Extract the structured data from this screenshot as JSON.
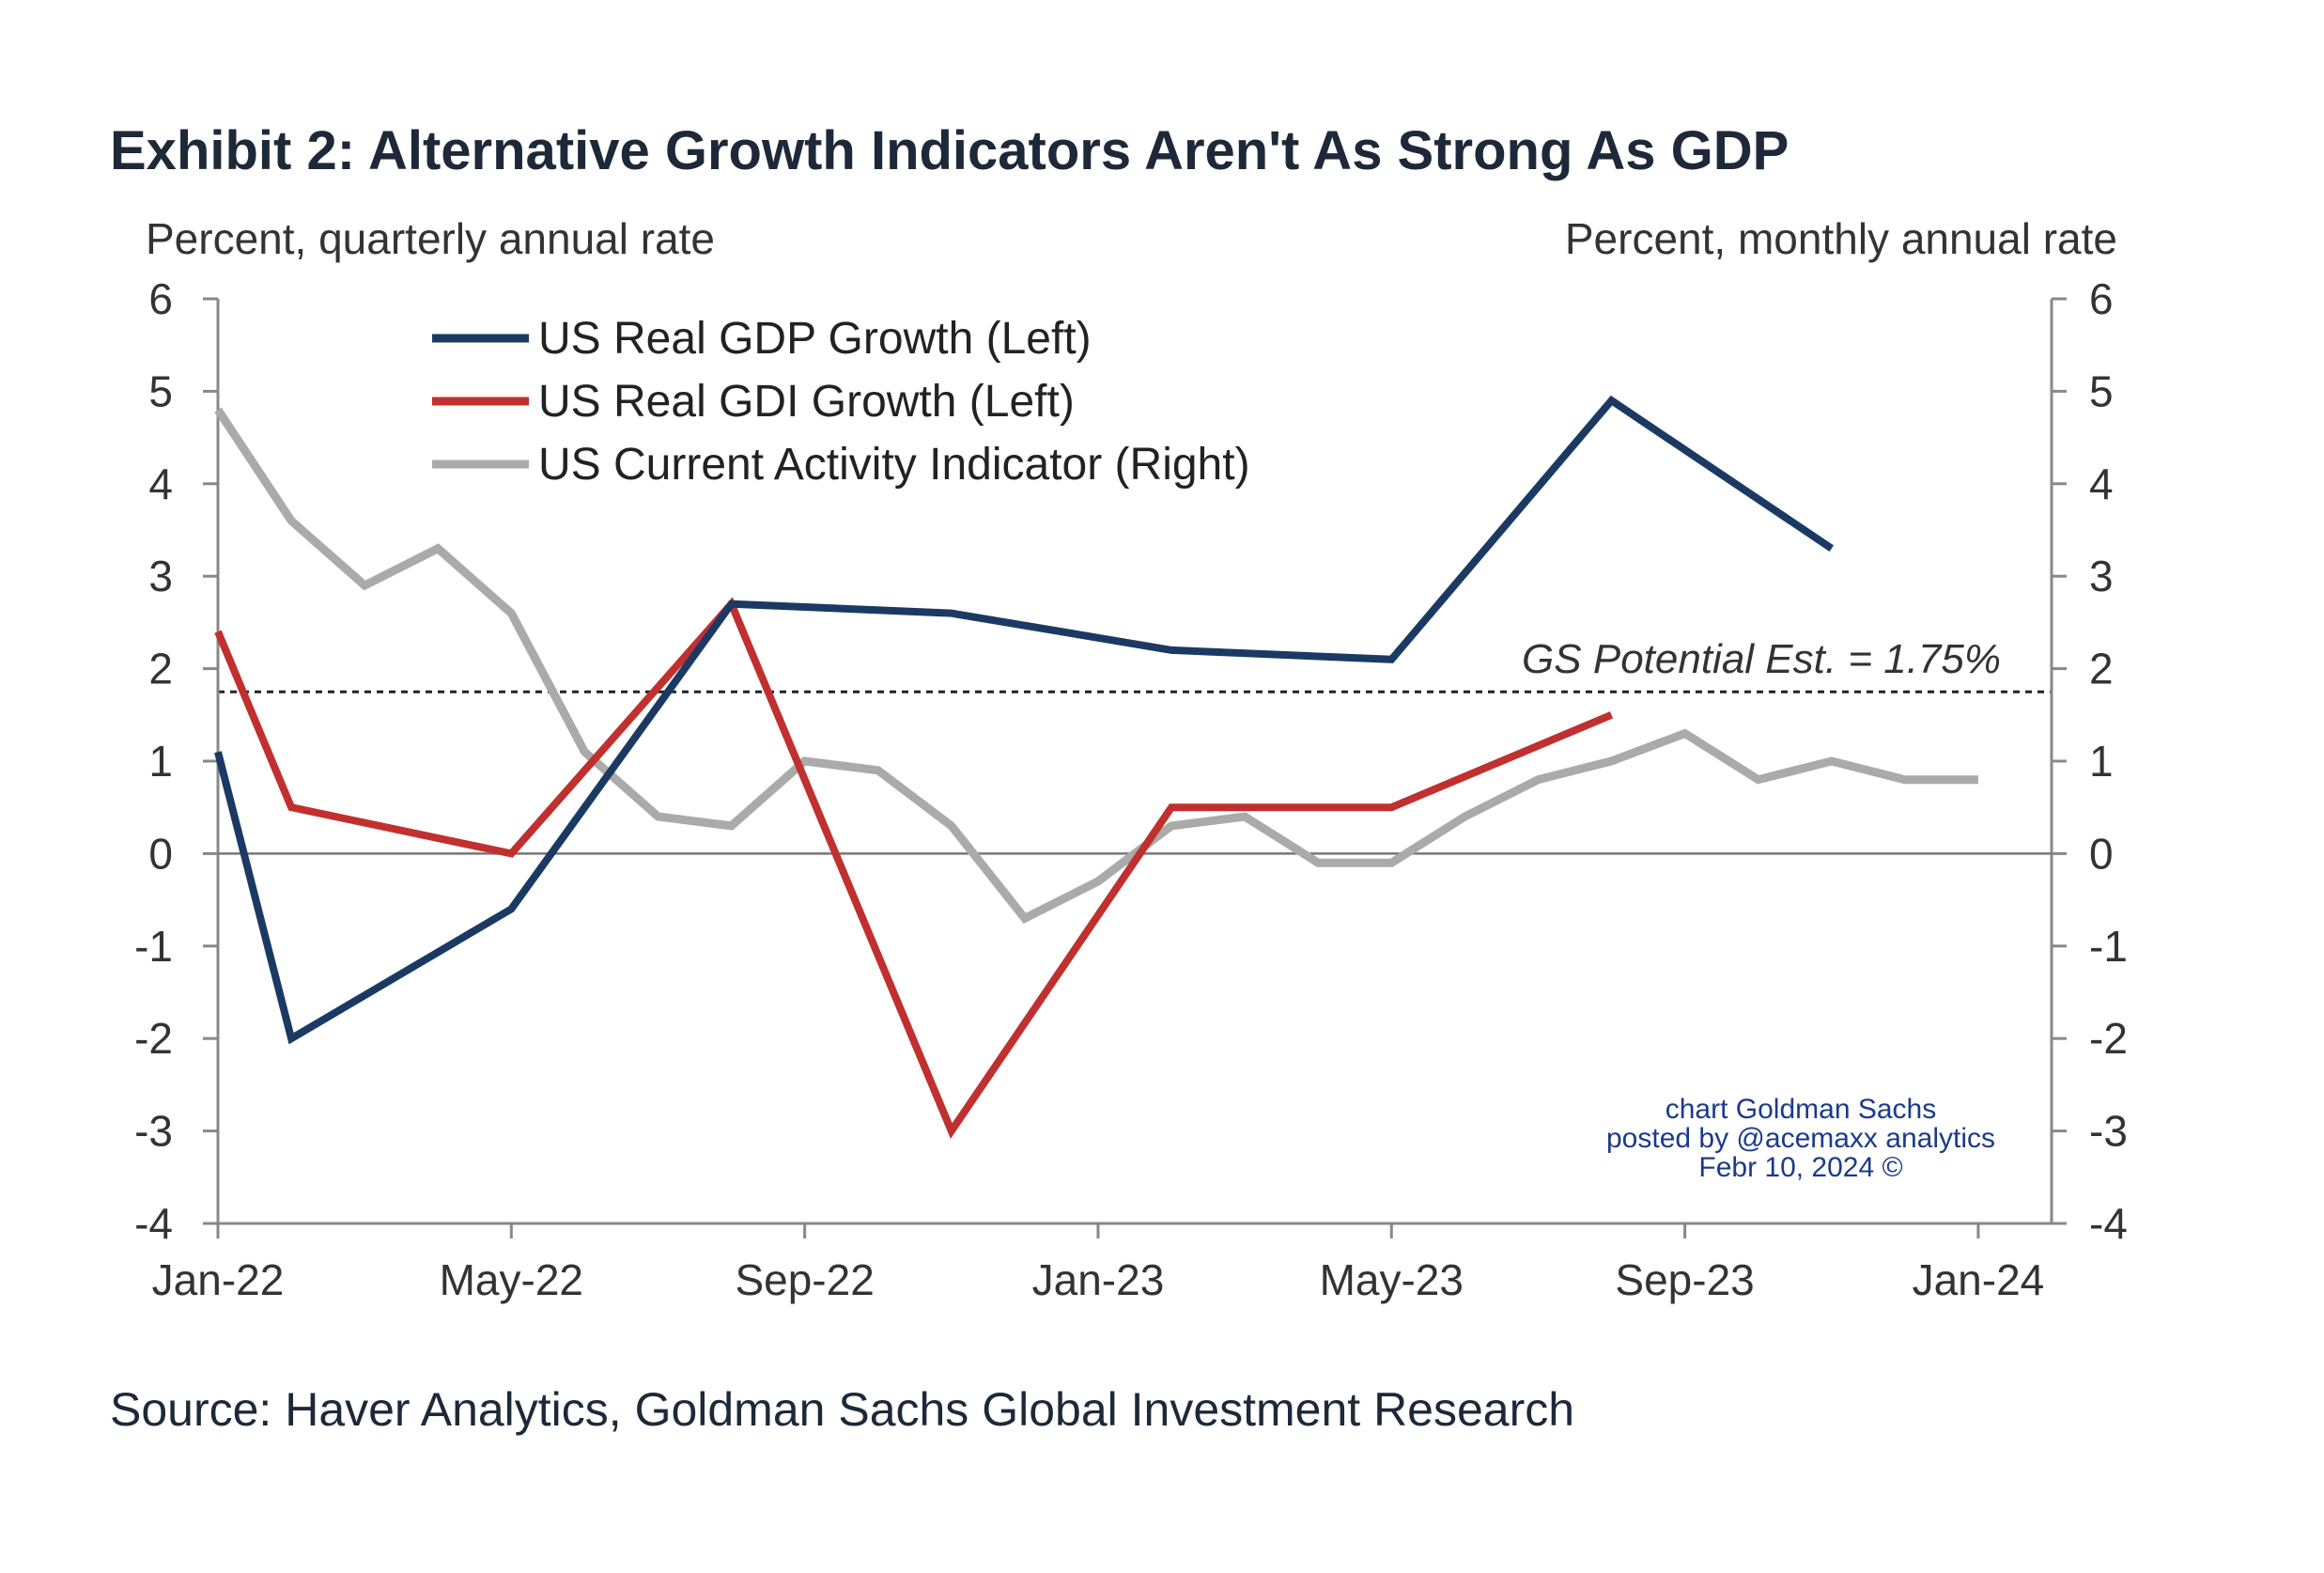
{
  "page": {
    "title": "Exhibit 2: Alternative Growth Indicators Aren't As Strong As GDP",
    "source": "Source: Haver Analytics, Goldman Sachs Global Investment Research",
    "watermark": [
      "chart Goldman Sachs",
      "posted by @acemaxx analytics",
      "Febr 10, 2024 ©"
    ]
  },
  "chart_data": {
    "type": "line",
    "title": "Exhibit 2: Alternative Growth Indicators Aren't As Strong As GDP",
    "left_axis_label": "Percent, quarterly annual rate",
    "right_axis_label": "Percent, monthly annual rate",
    "ylim": [
      -4,
      6
    ],
    "y_ticks": [
      "6",
      "5",
      "4",
      "3",
      "2",
      "1",
      "0",
      "-1",
      "-2",
      "-3",
      "-4"
    ],
    "xlim": [
      "Jan-22",
      "Feb-24"
    ],
    "x_ticks": [
      "Jan-22",
      "May-22",
      "Sep-22",
      "Jan-23",
      "May-23",
      "Sep-23",
      "Jan-24"
    ],
    "zero_line": true,
    "legend_position": "top-left",
    "reference_line": {
      "value": 1.75,
      "label": "GS Potential Est. = 1.75%",
      "style": "dashed"
    },
    "series": [
      {
        "name": "US Real GDP Growth (Left)",
        "axis": "left",
        "color": "#1b3a63",
        "points": [
          {
            "x": "Jan-22",
            "y": 1.1
          },
          {
            "x": "Feb-22",
            "y": -2.0
          },
          {
            "x": "May-22",
            "y": -0.6
          },
          {
            "x": "Aug-22",
            "y": 2.7
          },
          {
            "x": "Nov-22",
            "y": 2.6
          },
          {
            "x": "Feb-23",
            "y": 2.2
          },
          {
            "x": "May-23",
            "y": 2.1
          },
          {
            "x": "Aug-23",
            "y": 4.9
          },
          {
            "x": "Nov-23",
            "y": 3.3
          }
        ]
      },
      {
        "name": "US Real GDI Growth (Left)",
        "axis": "left",
        "color": "#c0302f",
        "points": [
          {
            "x": "Jan-22",
            "y": 2.4
          },
          {
            "x": "Feb-22",
            "y": 0.5
          },
          {
            "x": "May-22",
            "y": 0.0
          },
          {
            "x": "Aug-22",
            "y": 2.7
          },
          {
            "x": "Nov-22",
            "y": -3.0
          },
          {
            "x": "Feb-23",
            "y": 0.5
          },
          {
            "x": "May-23",
            "y": 0.5
          },
          {
            "x": "Aug-23",
            "y": 1.5
          }
        ]
      },
      {
        "name": "US Current Activity Indicator (Right)",
        "axis": "right",
        "color": "#aaaaaa",
        "points": [
          {
            "x": "Jan-22",
            "y": 4.8
          },
          {
            "x": "Feb-22",
            "y": 3.6
          },
          {
            "x": "Mar-22",
            "y": 2.9
          },
          {
            "x": "Apr-22",
            "y": 3.3
          },
          {
            "x": "May-22",
            "y": 2.6
          },
          {
            "x": "Jun-22",
            "y": 1.1
          },
          {
            "x": "Jul-22",
            "y": 0.4
          },
          {
            "x": "Aug-22",
            "y": 0.3
          },
          {
            "x": "Sep-22",
            "y": 1.0
          },
          {
            "x": "Oct-22",
            "y": 0.9
          },
          {
            "x": "Nov-22",
            "y": 0.3
          },
          {
            "x": "Dec-22",
            "y": -0.7
          },
          {
            "x": "Jan-23",
            "y": -0.3
          },
          {
            "x": "Feb-23",
            "y": 0.3
          },
          {
            "x": "Mar-23",
            "y": 0.4
          },
          {
            "x": "Apr-23",
            "y": -0.1
          },
          {
            "x": "May-23",
            "y": -0.1
          },
          {
            "x": "Jun-23",
            "y": 0.4
          },
          {
            "x": "Jul-23",
            "y": 0.8
          },
          {
            "x": "Aug-23",
            "y": 1.0
          },
          {
            "x": "Sep-23",
            "y": 1.3
          },
          {
            "x": "Oct-23",
            "y": 0.8
          },
          {
            "x": "Nov-23",
            "y": 1.0
          },
          {
            "x": "Dec-23",
            "y": 0.8
          },
          {
            "x": "Jan-24",
            "y": 0.8
          }
        ]
      }
    ]
  }
}
